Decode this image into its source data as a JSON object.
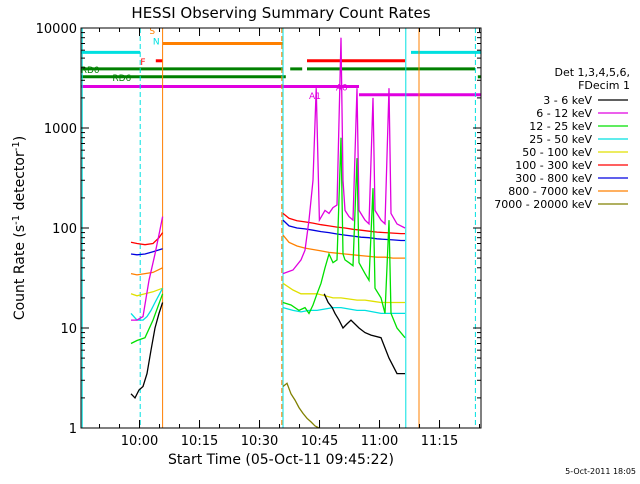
{
  "chart_data": {
    "type": "line",
    "title": "HESSI Observing Summary Count Rates",
    "xlabel": "Start Time (05-Oct-11 09:45:22)",
    "ylabel": "Count Rate (s",
    "ylabel_sup1": "-1",
    "ylabel_mid": " detector",
    "ylabel_sup2": "-1",
    "ylabel_end": ")",
    "y_scale": "log",
    "ylim": [
      1,
      10000
    ],
    "xlim_minutes": [
      0,
      100
    ],
    "x_ticks": [
      {
        "label": "10:00",
        "t": 14.63
      },
      {
        "label": "10:15",
        "t": 29.63
      },
      {
        "label": "10:30",
        "t": 44.63
      },
      {
        "label": "10:45",
        "t": 59.63
      },
      {
        "label": "11:00",
        "t": 74.63
      },
      {
        "label": "11:15",
        "t": 89.63
      }
    ],
    "y_ticks": [
      {
        "label": "1",
        "v": 1
      },
      {
        "label": "10",
        "v": 10
      },
      {
        "label": "100",
        "v": 100
      },
      {
        "label": "1000",
        "v": 1000
      },
      {
        "label": "10000",
        "v": 10000
      }
    ],
    "legend": {
      "header": [
        "Det 1,3,4,5,6,",
        "FDecim 1"
      ],
      "position": "right"
    },
    "series": [
      {
        "name": "3 - 6 keV",
        "color": "#000000",
        "segments": [
          [
            [
              12.5,
              2.2
            ],
            [
              13.5,
              2.0
            ],
            [
              14.5,
              2.4
            ],
            [
              15.5,
              2.6
            ],
            [
              16.5,
              3.5
            ],
            [
              17.5,
              6
            ],
            [
              18.5,
              10
            ],
            [
              19.5,
              14
            ],
            [
              20.4,
              18
            ]
          ],
          [
            [
              60.8,
              22
            ],
            [
              61.8,
              18
            ],
            [
              62.8,
              16
            ],
            [
              63.5,
              14
            ],
            [
              64.5,
              12
            ],
            [
              65.5,
              10
            ],
            [
              66.5,
              11
            ],
            [
              67.5,
              12
            ],
            [
              69.5,
              10
            ],
            [
              71,
              9
            ],
            [
              72.5,
              8.5
            ],
            [
              75,
              8
            ],
            [
              77,
              5
            ],
            [
              79,
              3.5
            ],
            [
              81,
              3.5
            ]
          ]
        ]
      },
      {
        "name": "6 - 12 keV",
        "color": "#e000e0",
        "segments": [
          [
            [
              12.5,
              12
            ],
            [
              14,
              12
            ],
            [
              15.5,
              13
            ],
            [
              17,
              30
            ],
            [
              18.5,
              55
            ],
            [
              19.6,
              90
            ],
            [
              20.4,
              130
            ]
          ],
          [
            [
              50.5,
              35
            ],
            [
              53,
              38
            ],
            [
              55,
              48
            ],
            [
              56,
              60
            ],
            [
              57,
              120
            ],
            [
              58,
              300
            ],
            [
              58.8,
              2500
            ],
            [
              59.6,
              120
            ],
            [
              61,
              150
            ],
            [
              62,
              140
            ],
            [
              63,
              160
            ],
            [
              64,
              170
            ],
            [
              65,
              8000
            ],
            [
              65.5,
              300
            ],
            [
              66,
              150
            ],
            [
              67,
              130
            ],
            [
              68,
              120
            ],
            [
              69,
              2500
            ],
            [
              69.5,
              150
            ],
            [
              71,
              120
            ],
            [
              72,
              110
            ],
            [
              73,
              2000
            ],
            [
              73.5,
              150
            ],
            [
              75,
              120
            ],
            [
              76,
              110
            ],
            [
              77,
              2500
            ],
            [
              77.5,
              140
            ],
            [
              79,
              110
            ],
            [
              81,
              100
            ]
          ]
        ]
      },
      {
        "name": "12 - 25 keV",
        "color": "#00e000",
        "segments": [
          [
            [
              12.5,
              7
            ],
            [
              14,
              7.5
            ],
            [
              16,
              8
            ],
            [
              18,
              12
            ],
            [
              20.4,
              22
            ]
          ],
          [
            [
              50.5,
              18
            ],
            [
              52.5,
              17
            ],
            [
              54.5,
              15
            ],
            [
              56,
              16
            ],
            [
              57,
              14
            ],
            [
              58,
              17
            ],
            [
              59,
              22
            ],
            [
              60,
              28
            ],
            [
              61,
              40
            ],
            [
              62,
              55
            ],
            [
              63,
              45
            ],
            [
              64,
              48
            ],
            [
              65,
              800
            ],
            [
              65.5,
              55
            ],
            [
              66,
              48
            ],
            [
              67,
              45
            ],
            [
              68,
              42
            ],
            [
              69,
              500
            ],
            [
              69.5,
              45
            ],
            [
              71,
              35
            ],
            [
              72,
              30
            ],
            [
              73,
              250
            ],
            [
              73.5,
              25
            ],
            [
              75,
              20
            ],
            [
              76,
              14
            ],
            [
              77,
              120
            ],
            [
              77.5,
              14
            ],
            [
              79,
              10
            ],
            [
              81,
              8
            ]
          ]
        ]
      },
      {
        "name": "25 - 50 keV",
        "color": "#00e0e0",
        "segments": [
          [
            [
              12.5,
              14
            ],
            [
              14,
              12
            ],
            [
              15.5,
              12
            ],
            [
              16.5,
              13
            ],
            [
              17.5,
              15
            ],
            [
              18.5,
              18
            ],
            [
              20.4,
              25
            ]
          ],
          [
            [
              50.5,
              16
            ],
            [
              53,
              15
            ],
            [
              55,
              14.5
            ],
            [
              57,
              15
            ],
            [
              59,
              15
            ],
            [
              61,
              15.5
            ],
            [
              63,
              16
            ],
            [
              65,
              16
            ],
            [
              67,
              15.5
            ],
            [
              69,
              15
            ],
            [
              71,
              15
            ],
            [
              73,
              14.5
            ],
            [
              75,
              14
            ],
            [
              77,
              14
            ],
            [
              79,
              14
            ],
            [
              81,
              14
            ]
          ]
        ]
      },
      {
        "name": "50 - 100 keV",
        "color": "#e0e000",
        "segments": [
          [
            [
              12.5,
              22
            ],
            [
              14,
              21
            ],
            [
              16,
              22
            ],
            [
              18,
              23
            ],
            [
              20.4,
              25
            ]
          ],
          [
            [
              50.5,
              28
            ],
            [
              53,
              24
            ],
            [
              55,
              22
            ],
            [
              57,
              22
            ],
            [
              59,
              22
            ],
            [
              61,
              21
            ],
            [
              63,
              20
            ],
            [
              65,
              20
            ],
            [
              67,
              19.5
            ],
            [
              69,
              19
            ],
            [
              71,
              19
            ],
            [
              73,
              18.5
            ],
            [
              75,
              18
            ],
            [
              77,
              18
            ],
            [
              79,
              18
            ],
            [
              81,
              18
            ]
          ]
        ]
      },
      {
        "name": "100 - 300 keV",
        "color": "#ff0000",
        "segments": [
          [
            [
              12.5,
              72
            ],
            [
              14,
              70
            ],
            [
              16,
              68
            ],
            [
              18,
              70
            ],
            [
              19.5,
              80
            ],
            [
              20.4,
              90
            ]
          ],
          [
            [
              50.5,
              140
            ],
            [
              52,
              125
            ],
            [
              54,
              118
            ],
            [
              56,
              115
            ],
            [
              58,
              112
            ],
            [
              60,
              108
            ],
            [
              62,
              105
            ],
            [
              64,
              102
            ],
            [
              66,
              100
            ],
            [
              68,
              97
            ],
            [
              70,
              95
            ],
            [
              72,
              93
            ],
            [
              74,
              91
            ],
            [
              76,
              90
            ],
            [
              78,
              89
            ],
            [
              80,
              88
            ],
            [
              81,
              88
            ]
          ]
        ]
      },
      {
        "name": "300 - 800 keV",
        "color": "#0000e0",
        "segments": [
          [
            [
              12.5,
              55
            ],
            [
              14,
              54
            ],
            [
              16,
              55
            ],
            [
              18,
              58
            ],
            [
              20.4,
              62
            ]
          ],
          [
            [
              50.5,
              120
            ],
            [
              52,
              105
            ],
            [
              54,
              100
            ],
            [
              56,
              98
            ],
            [
              58,
              95
            ],
            [
              60,
              92
            ],
            [
              62,
              90
            ],
            [
              64,
              87
            ],
            [
              66,
              85
            ],
            [
              68,
              83
            ],
            [
              70,
              81
            ],
            [
              72,
              80
            ],
            [
              74,
              78
            ],
            [
              76,
              77
            ],
            [
              78,
              76
            ],
            [
              80,
              75
            ],
            [
              81,
              75
            ]
          ]
        ]
      },
      {
        "name": "800 - 7000 keV",
        "color": "#ff8000",
        "segments": [
          [
            [
              12.5,
              35
            ],
            [
              14,
              34
            ],
            [
              16,
              35
            ],
            [
              18,
              36
            ],
            [
              20.4,
              40
            ]
          ],
          [
            [
              50.5,
              85
            ],
            [
              52,
              72
            ],
            [
              54,
              66
            ],
            [
              56,
              63
            ],
            [
              58,
              61
            ],
            [
              60,
              59
            ],
            [
              62,
              57
            ],
            [
              64,
              56
            ],
            [
              66,
              55
            ],
            [
              68,
              54
            ],
            [
              70,
              53
            ],
            [
              72,
              52
            ],
            [
              74,
              51
            ],
            [
              76,
              51
            ],
            [
              78,
              50
            ],
            [
              80,
              50
            ],
            [
              81,
              50
            ]
          ]
        ]
      },
      {
        "name": "7000 - 20000 keV",
        "color": "#808000",
        "segments": [
          [
            [
              50.5,
              2.6
            ],
            [
              51.5,
              2.8
            ],
            [
              52.5,
              2.2
            ],
            [
              53.5,
              1.9
            ],
            [
              54.5,
              1.6
            ],
            [
              55.5,
              1.4
            ],
            [
              56.5,
              1.25
            ],
            [
              57.5,
              1.15
            ],
            [
              58.5,
              1.05
            ],
            [
              59.5,
              1.0
            ]
          ]
        ]
      }
    ],
    "status_bars": [
      {
        "color": "#00e0e0",
        "v": 5700,
        "segments": [
          [
            0,
            14.8
          ],
          [
            82.5,
            100
          ]
        ]
      },
      {
        "color": "#ff8000",
        "v": 7000,
        "segments": [
          [
            20.4,
            50.5
          ]
        ]
      },
      {
        "color": "#ff0000",
        "v": 4700,
        "segments": [
          [
            18.7,
            20.4
          ],
          [
            56.5,
            81
          ]
        ]
      },
      {
        "color": "#008000",
        "v": 3900,
        "segments": [
          [
            0,
            50.5
          ],
          [
            52.3,
            55.3
          ],
          [
            56.5,
            98.5
          ]
        ]
      },
      {
        "color": "#008000",
        "v": 3250,
        "segments": [
          [
            0,
            51.2
          ],
          [
            99.2,
            100
          ]
        ]
      },
      {
        "color": "#e000e0",
        "v": 2600,
        "segments": [
          [
            0,
            69.5
          ]
        ]
      },
      {
        "color": "#e000e0",
        "v": 2150,
        "segments": [
          [
            69.5,
            100
          ]
        ]
      }
    ],
    "vlines": [
      {
        "t": 0.3,
        "color": "#00e0e0",
        "style": "solid"
      },
      {
        "t": 14.8,
        "color": "#00e0e0",
        "style": "dash"
      },
      {
        "t": 20.4,
        "color": "#ff8000",
        "style": "solid"
      },
      {
        "t": 50.2,
        "color": "#ff8000",
        "style": "dash"
      },
      {
        "t": 50.5,
        "color": "#00e0e0",
        "style": "solid"
      },
      {
        "t": 81.2,
        "color": "#00e0e0",
        "style": "solid"
      },
      {
        "t": 84.5,
        "color": "#ff8000",
        "style": "solid"
      },
      {
        "t": 98.6,
        "color": "#00e0e0",
        "style": "dash"
      }
    ],
    "annotations": [
      {
        "text": "S",
        "color": "#ff8000",
        "t": 17.8,
        "v": 9500
      },
      {
        "text": "N",
        "color": "#00e0e0",
        "t": 18.8,
        "v": 7500
      },
      {
        "text": "F",
        "color": "#ff0000",
        "t": 15.5,
        "v": 4700
      },
      {
        "text": "RD0",
        "color": "#008000",
        "t": 2.3,
        "v": 3900
      },
      {
        "text": "RD6",
        "color": "#008000",
        "t": 10.2,
        "v": 3250
      },
      {
        "text": "A0",
        "color": "#e000e0",
        "t": 65.2,
        "v": 2600
      },
      {
        "text": "A1",
        "color": "#e000e0",
        "t": 58.5,
        "v": 2150
      }
    ],
    "footer_timestamp": "5-Oct-2011 18:05"
  }
}
